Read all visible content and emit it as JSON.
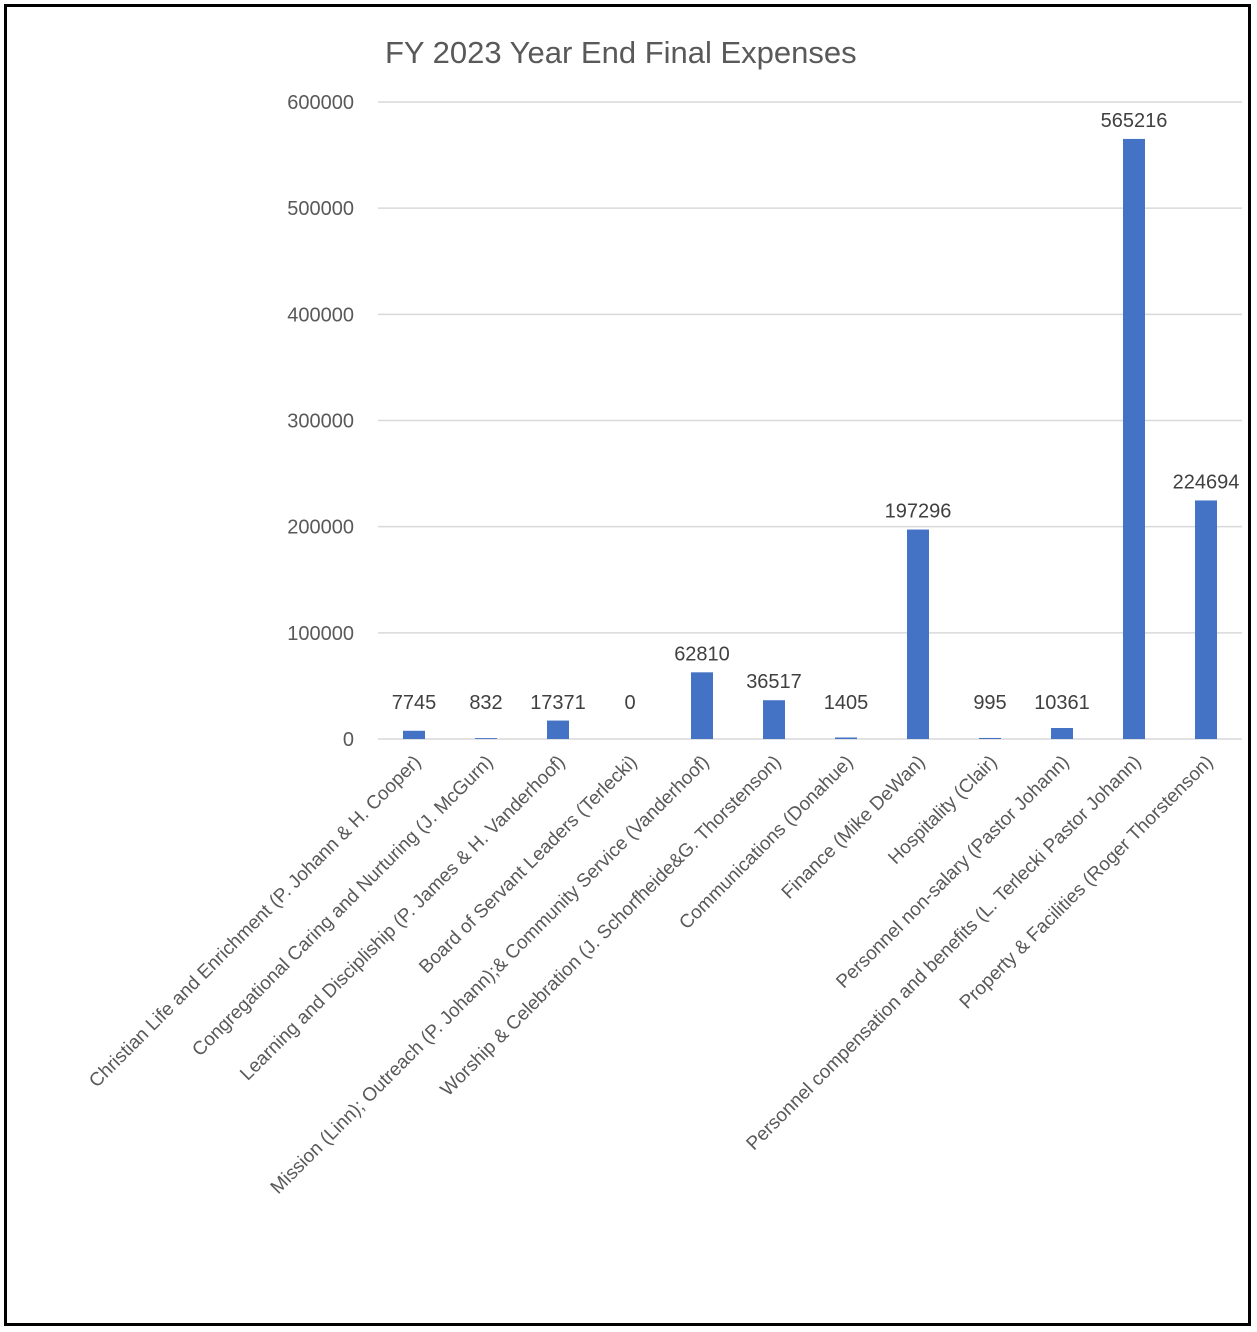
{
  "chart_data": {
    "type": "bar",
    "title": "FY 2023 Year End Final Expenses",
    "xlabel": "",
    "ylabel": "",
    "ylim": [
      0,
      600000
    ],
    "yticks": [
      0,
      100000,
      200000,
      300000,
      400000,
      500000,
      600000
    ],
    "grid": true,
    "legend": "none",
    "colors": {
      "bar": "#4472c4",
      "grid": "#d9d9d9",
      "text": "#595959"
    },
    "categories": [
      "Christian Life and Enrichment (P. Johann & H. Cooper)",
      "Congregational Caring and Nurturing (J. McGurn)",
      "Learning and Discipliship (P. James & H. Vanderhoof)",
      "Board of Servant Leaders (Terlecki)",
      "Mission (Linn); Outreach (P. Johann);& Community Service (Vanderhoof)",
      "Worship & Celebration (J. Schorfheide&G. Thorstenson)",
      "Communications (Donahue)",
      "Finance (Mike DeWan)",
      "Hospitality (Clair)",
      "Personnel non-salary  (Pastor Johann)",
      "Personnel compensation and benefits (L. Terlecki Pastor Johann)",
      "Property & Facilities (Roger Thorstenson)"
    ],
    "values": [
      7745,
      832,
      17371,
      0,
      62810,
      36517,
      1405,
      197296,
      995,
      10361,
      565216,
      224694
    ]
  }
}
